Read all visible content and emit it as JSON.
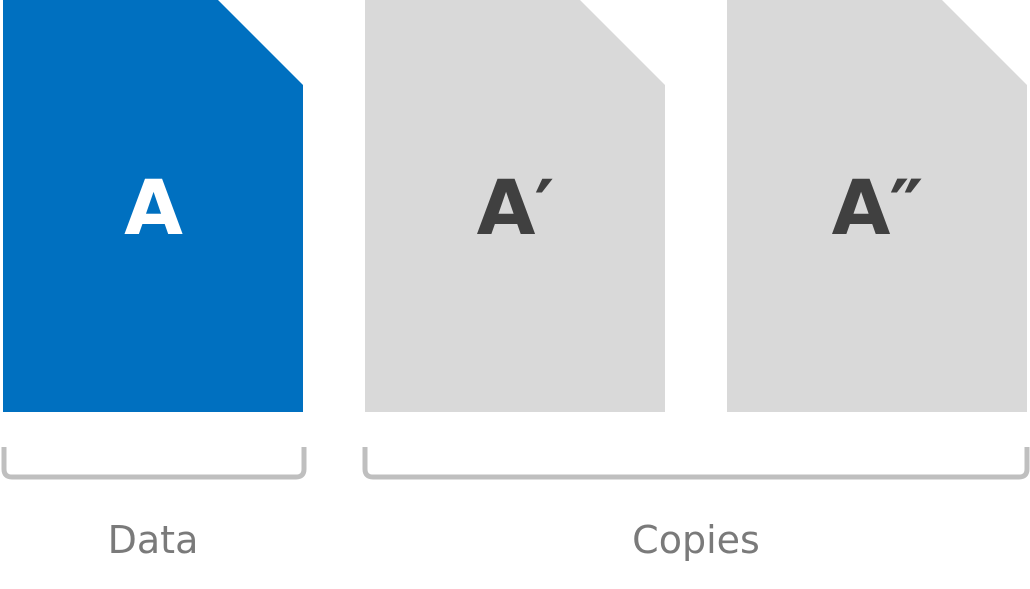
{
  "colors": {
    "original_fill": "#0070c0",
    "copy_fill": "#d9d9d9",
    "original_text": "#ffffff",
    "copy_text": "#404040",
    "bracket": "#bfbfbf",
    "label_text": "#7a7a7a"
  },
  "documents": {
    "original": {
      "letter": "A"
    },
    "copy_1": {
      "letter": "A′"
    },
    "copy_2": {
      "letter": "A″"
    }
  },
  "groups": {
    "data_label": "Data",
    "copies_label": "Copies"
  }
}
